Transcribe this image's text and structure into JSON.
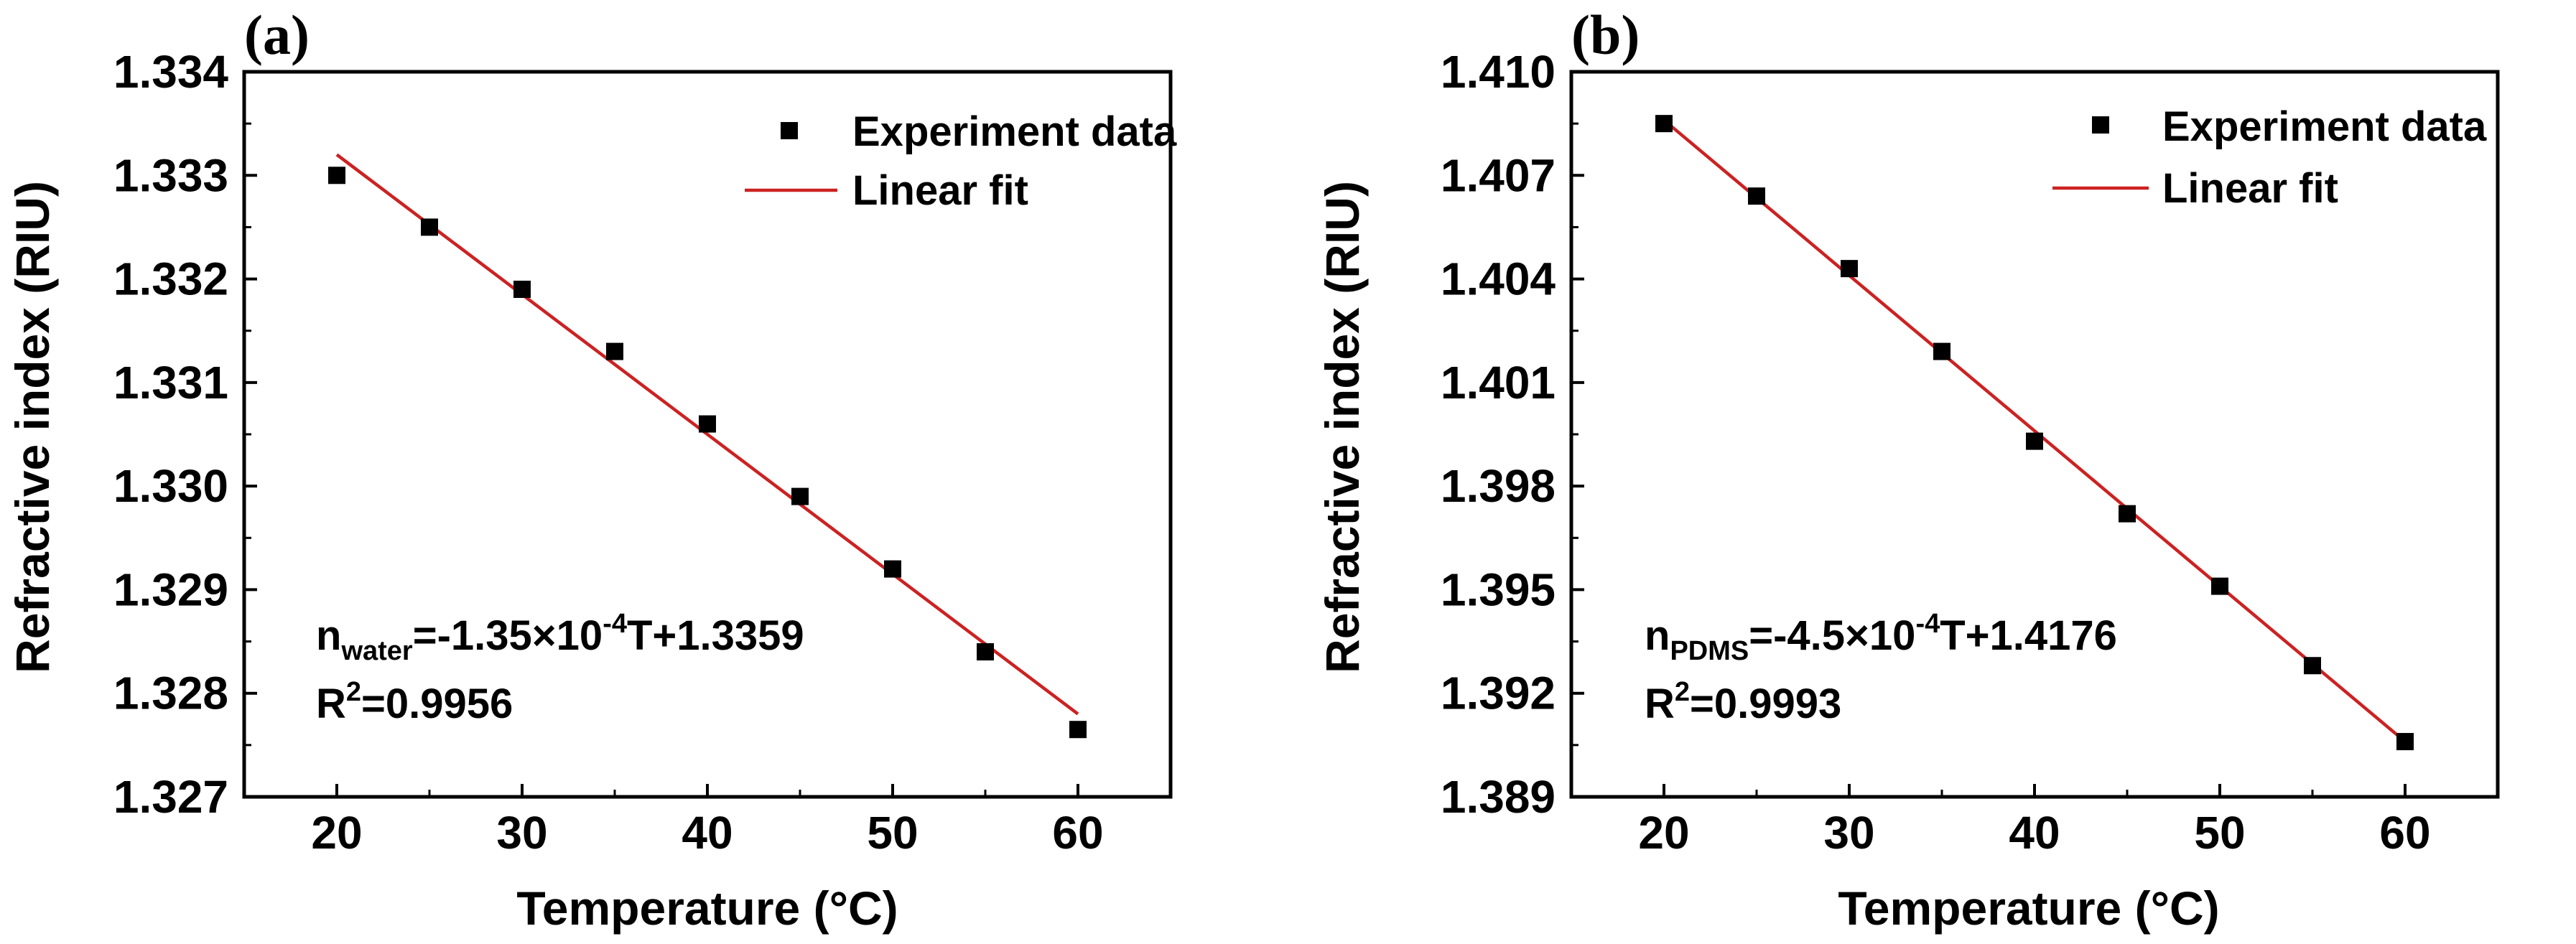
{
  "chart_data": [
    {
      "type": "scatter",
      "panel_label": "(a)",
      "xlabel": "Temperature (°C)",
      "ylabel": "Refractive index (RIU)",
      "xlim": [
        15,
        65
      ],
      "ylim": [
        1.327,
        1.334
      ],
      "xticks": [
        20,
        30,
        40,
        50,
        60
      ],
      "xtick_labels": [
        "20",
        "30",
        "40",
        "50",
        "60"
      ],
      "yticks": [
        1.327,
        1.328,
        1.329,
        1.33,
        1.331,
        1.332,
        1.333,
        1.334
      ],
      "ytick_labels": [
        "1.327",
        "1.328",
        "1.329",
        "1.330",
        "1.331",
        "1.332",
        "1.333",
        "1.334"
      ],
      "series": [
        {
          "name": "Experiment data",
          "marker": "square",
          "color": "#000000",
          "x": [
            20,
            25,
            30,
            35,
            40,
            45,
            50,
            55,
            60
          ],
          "y": [
            1.333,
            1.3325,
            1.3319,
            1.3313,
            1.3306,
            1.3299,
            1.3292,
            1.3284,
            1.32765
          ]
        },
        {
          "name": "Linear fit",
          "kind": "line",
          "color": "#cc2222",
          "slope": -0.000135,
          "intercept": 1.3359,
          "x": [
            20,
            60
          ]
        }
      ],
      "legend": {
        "position": "top-right",
        "entries": [
          "Experiment data",
          "Linear fit"
        ]
      },
      "annotation": {
        "eq_main": "n",
        "eq_sub": "water",
        "eq_mid": "=-1.35×10",
        "eq_sup": "-4",
        "eq_end": "T+1.3359",
        "r2_main": "R",
        "r2_sup": "2",
        "r2_end": "=0.9956"
      }
    },
    {
      "type": "scatter",
      "panel_label": "(b)",
      "xlabel": "Temperature (°C)",
      "ylabel": "Refractive index (RIU)",
      "xlim": [
        15,
        65
      ],
      "ylim": [
        1.389,
        1.41
      ],
      "xticks": [
        20,
        30,
        40,
        50,
        60
      ],
      "xtick_labels": [
        "20",
        "30",
        "40",
        "50",
        "60"
      ],
      "yticks": [
        1.389,
        1.392,
        1.395,
        1.398,
        1.401,
        1.404,
        1.407,
        1.41
      ],
      "ytick_labels": [
        "1.389",
        "1.392",
        "1.395",
        "1.398",
        "1.401",
        "1.404",
        "1.407",
        "1.410"
      ],
      "series": [
        {
          "name": "Experiment data",
          "marker": "square",
          "color": "#000000",
          "x": [
            20,
            25,
            30,
            35,
            40,
            45,
            50,
            55,
            60
          ],
          "y": [
            1.4085,
            1.4064,
            1.4043,
            1.4019,
            1.3993,
            1.3972,
            1.3951,
            1.3928,
            1.3906
          ]
        },
        {
          "name": "Linear fit",
          "kind": "line",
          "color": "#cc2222",
          "slope": -0.00045,
          "intercept": 1.4176,
          "x": [
            20,
            60
          ]
        }
      ],
      "legend": {
        "position": "top-right",
        "entries": [
          "Experiment data",
          "Linear fit"
        ]
      },
      "annotation": {
        "eq_main": "n",
        "eq_sub": "PDMS",
        "eq_mid": "=-4.5×10",
        "eq_sup": "-4",
        "eq_end": "T+1.4176",
        "r2_main": "R",
        "r2_sup": "2",
        "r2_end": "=0.9993"
      }
    }
  ]
}
